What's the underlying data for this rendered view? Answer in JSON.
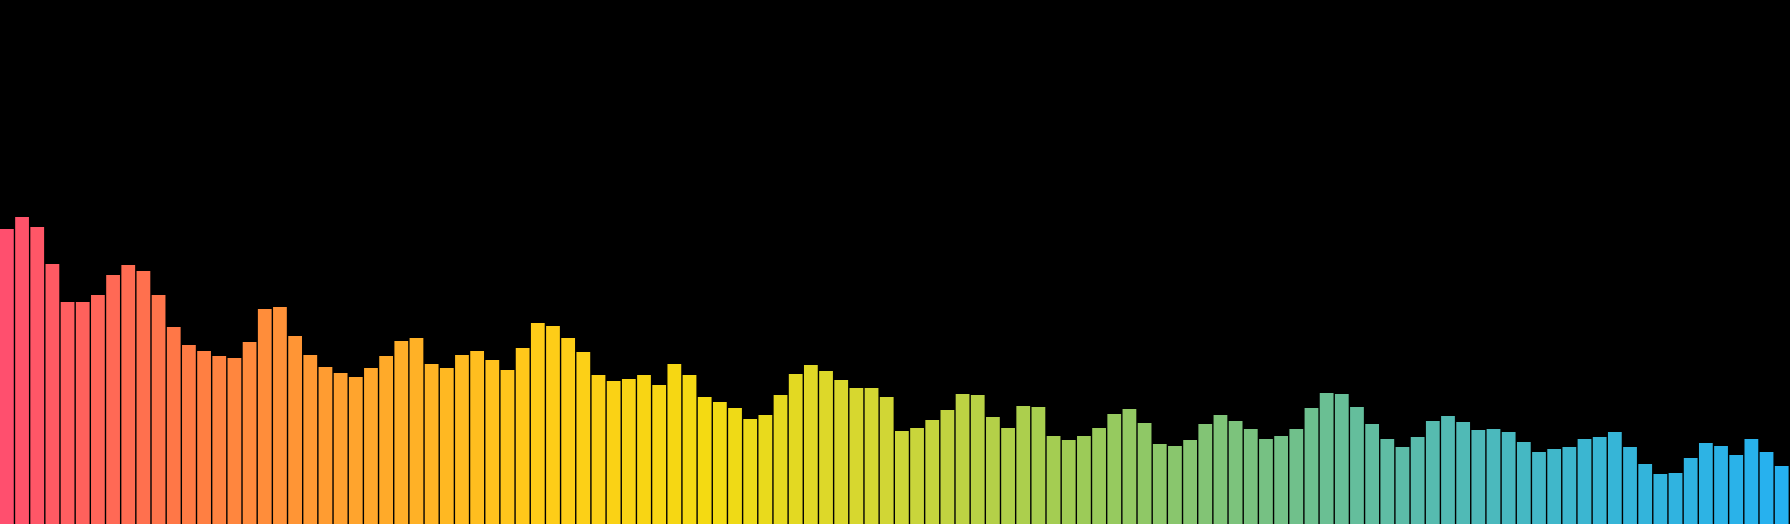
{
  "chart_data": {
    "type": "bar",
    "ylim": [
      0,
      524
    ],
    "grid": false,
    "legend": "none",
    "gradient": [
      "#FF4F6E",
      "#FF7A45",
      "#FFA52C",
      "#FFCC18",
      "#F3DB12",
      "#CFD637",
      "#9FCC55",
      "#79C27F",
      "#57BBAE",
      "#37B5D5",
      "#25B1F0"
    ],
    "values": [
      295,
      307,
      297,
      260,
      222,
      222,
      229,
      249,
      259,
      253,
      229,
      197,
      179,
      173,
      168,
      166,
      182,
      215,
      217,
      188,
      169,
      157,
      151,
      147,
      156,
      168,
      183,
      186,
      160,
      156,
      169,
      173,
      164,
      154,
      176,
      201,
      198,
      186,
      172,
      149,
      143,
      145,
      149,
      139,
      160,
      149,
      127,
      122,
      116,
      105,
      109,
      129,
      150,
      159,
      153,
      144,
      136,
      136,
      127,
      93,
      96,
      104,
      114,
      130,
      129,
      107,
      96,
      118,
      117,
      88,
      84,
      88,
      96,
      110,
      115,
      101,
      80,
      78,
      84,
      100,
      109,
      103,
      95,
      85,
      88,
      95,
      116,
      131,
      130,
      117,
      100,
      85,
      77,
      87,
      103,
      108,
      102,
      94,
      95,
      92,
      82,
      72,
      75,
      77,
      85,
      87,
      92,
      77,
      60,
      50,
      51,
      66,
      81,
      78,
      69,
      85,
      72,
      58
    ]
  }
}
